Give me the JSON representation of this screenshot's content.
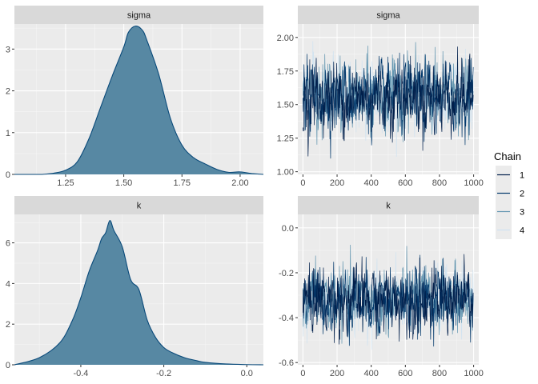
{
  "chart_data": [
    {
      "type": "area",
      "panel": "density",
      "strip_title": "sigma",
      "x": [
        1.15,
        1.2,
        1.25,
        1.3,
        1.35,
        1.4,
        1.45,
        1.5,
        1.52,
        1.55,
        1.58,
        1.6,
        1.65,
        1.7,
        1.75,
        1.8,
        1.85,
        1.9,
        1.95,
        2.0,
        2.05
      ],
      "y": [
        0.0,
        0.03,
        0.1,
        0.3,
        0.85,
        1.6,
        2.35,
        3.05,
        3.4,
        3.55,
        3.45,
        3.2,
        2.4,
        1.35,
        0.7,
        0.4,
        0.25,
        0.12,
        0.05,
        0.06,
        0.02
      ],
      "xlim": [
        1.03,
        2.1
      ],
      "ylim": [
        0,
        3.6
      ],
      "x_ticks": [
        "1.25",
        "1.50",
        "1.75",
        "2.00"
      ],
      "x_tick_values": [
        1.25,
        1.5,
        1.75,
        2.0
      ],
      "y_ticks": [
        "0",
        "1",
        "2",
        "3"
      ],
      "y_tick_values": [
        0,
        1,
        2,
        3
      ],
      "fill_color": "#5788a3",
      "line_color": "#0a4a7a",
      "grid": true
    },
    {
      "type": "line",
      "panel": "trace",
      "strip_title": "sigma",
      "chains": [
        "1",
        "2",
        "3",
        "4"
      ],
      "iterations": 1000,
      "center": 1.56,
      "spread": 0.13,
      "min_value": 1.02,
      "max_value": 2.03,
      "xlim": [
        -30,
        1030
      ],
      "ylim": [
        0.98,
        2.1
      ],
      "x_ticks": [
        "0",
        "200",
        "400",
        "600",
        "800",
        "1000"
      ],
      "x_tick_values": [
        0,
        200,
        400,
        600,
        800,
        1000
      ],
      "y_ticks": [
        "1.00",
        "1.25",
        "1.50",
        "1.75",
        "2.00"
      ],
      "y_tick_values": [
        1.0,
        1.25,
        1.5,
        1.75,
        2.0
      ],
      "grid": true
    },
    {
      "type": "area",
      "panel": "density",
      "strip_title": "k",
      "x": [
        -0.56,
        -0.5,
        -0.45,
        -0.42,
        -0.4,
        -0.38,
        -0.36,
        -0.35,
        -0.34,
        -0.33,
        -0.32,
        -0.3,
        -0.28,
        -0.26,
        -0.24,
        -0.22,
        -0.2,
        -0.18,
        -0.15,
        -0.12,
        -0.1,
        -0.05,
        0.0,
        0.04
      ],
      "y": [
        0.0,
        0.35,
        1.1,
        2.2,
        3.3,
        4.6,
        5.6,
        6.2,
        6.5,
        7.1,
        6.6,
        5.8,
        4.2,
        3.7,
        2.2,
        1.35,
        0.85,
        0.6,
        0.35,
        0.2,
        0.12,
        0.04,
        0.01,
        0.0
      ],
      "xlim": [
        -0.56,
        0.04
      ],
      "ylim": [
        0,
        7.4
      ],
      "x_ticks": [
        "-0.4",
        "-0.2",
        "0.0"
      ],
      "x_tick_values": [
        -0.4,
        -0.2,
        0.0
      ],
      "y_ticks": [
        "0",
        "2",
        "4",
        "6"
      ],
      "y_tick_values": [
        0,
        2,
        4,
        6
      ],
      "fill_color": "#5788a3",
      "line_color": "#0a4a7a",
      "grid": true
    },
    {
      "type": "line",
      "panel": "trace",
      "strip_title": "k",
      "chains": [
        "1",
        "2",
        "3",
        "4"
      ],
      "iterations": 1000,
      "center": -0.32,
      "spread": 0.07,
      "min_value": -0.58,
      "max_value": 0.0,
      "xlim": [
        -30,
        1030
      ],
      "ylim": [
        -0.61,
        0.06
      ],
      "x_ticks": [
        "0",
        "200",
        "400",
        "600",
        "800",
        "1000"
      ],
      "x_tick_values": [
        0,
        200,
        400,
        600,
        800,
        1000
      ],
      "y_ticks": [
        "-0.6",
        "-0.4",
        "-0.2",
        "0.0"
      ],
      "y_tick_values": [
        -0.6,
        -0.4,
        -0.2,
        0.0
      ],
      "grid": true
    }
  ],
  "legend": {
    "title": "Chain",
    "items": [
      {
        "label": "1",
        "color": "#011f4b"
      },
      {
        "label": "2",
        "color": "#03396c"
      },
      {
        "label": "3",
        "color": "#6497b1"
      },
      {
        "label": "4",
        "color": "#d1e3f0"
      }
    ]
  }
}
